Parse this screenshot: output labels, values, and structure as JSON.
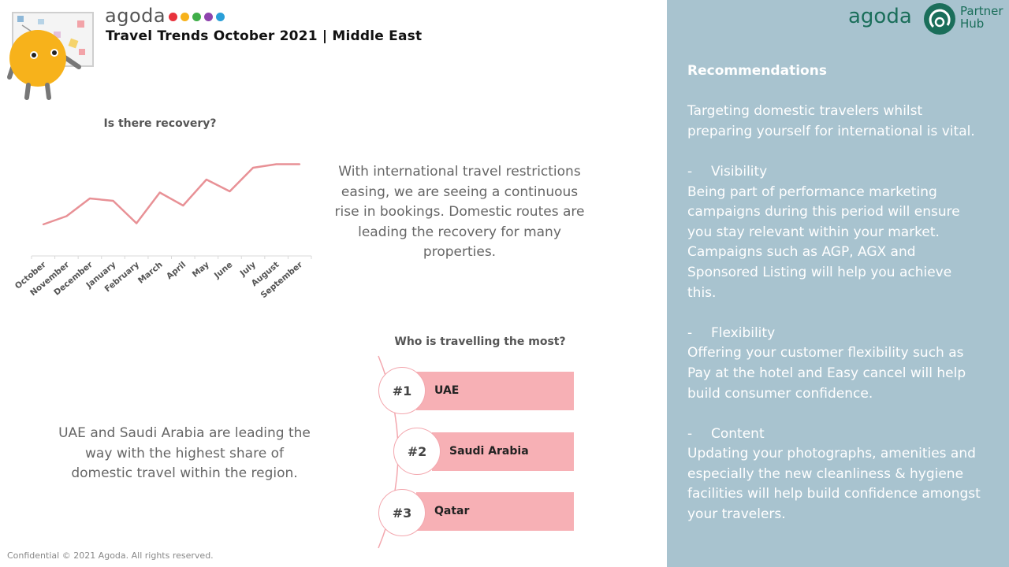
{
  "header": {
    "brand": "agoda",
    "brand_dot_colors": [
      "#e8323c",
      "#f7b21b",
      "#3fae49",
      "#8e44ad",
      "#2a9fd8"
    ],
    "title": "Travel Trends October 2021 | Middle East"
  },
  "chart_data": {
    "type": "line",
    "title": "Is there recovery?",
    "categories": [
      "October",
      "November",
      "December",
      "January",
      "February",
      "March",
      "April",
      "May",
      "June",
      "July",
      "August",
      "September"
    ],
    "values": [
      20,
      27,
      42,
      40,
      21,
      47,
      36,
      58,
      48,
      68,
      71,
      71
    ],
    "ylim": [
      0,
      100
    ],
    "color": "#e89196",
    "grid": false,
    "xlabel": "",
    "ylabel": ""
  },
  "recovery_text": "With international travel restrictions easing, we are seeing a continuous rise in bookings. Domestic routes are leading the recovery for many properties.",
  "ranking": {
    "title": "Who is travelling the most?",
    "items": [
      {
        "rank": "#1",
        "name": "UAE"
      },
      {
        "rank": "#2",
        "name": "Saudi Arabia"
      },
      {
        "rank": "#3",
        "name": "Qatar"
      }
    ],
    "bar_color": "#f7b0b5"
  },
  "domestic_text": "UAE and Saudi Arabia are leading the way with the highest share of domestic travel within the region.",
  "footer": "Confidential © 2021 Agoda. All rights reserved.",
  "right_panel": {
    "logo_brand": "agoda",
    "logo_partner": "Partner",
    "logo_hub": "Hub",
    "heading": "Recommendations",
    "intro": "Targeting domestic travelers whilst preparing yourself for international is vital.",
    "items": [
      {
        "dash": "-",
        "title": "Visibility",
        "body": "Being part of performance marketing campaigns during this period will ensure you stay relevant within your market. Campaigns such as AGP, AGX and Sponsored Listing will help you achieve this."
      },
      {
        "dash": "-",
        "title": "Flexibility",
        "body": "Offering your customer flexibility such as Pay at the hotel and Easy cancel will help build consumer confidence."
      },
      {
        "dash": "-",
        "title": "Content",
        "body": "Updating your photographs, amenities and especially the new cleanliness & hygiene facilities will help build confidence amongst your travelers."
      }
    ],
    "bg_color": "#a8c3cf"
  }
}
